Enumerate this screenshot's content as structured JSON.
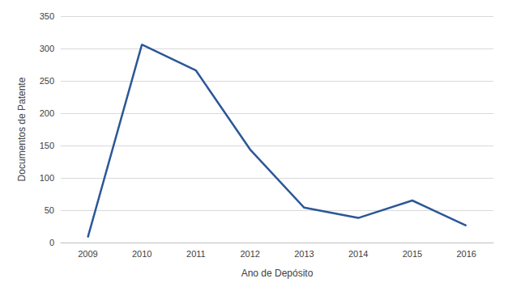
{
  "chart_data": {
    "type": "line",
    "x_label": "Ano de Depósito",
    "y_label": "Documentos de Patente",
    "categories": [
      "2009",
      "2010",
      "2011",
      "2012",
      "2013",
      "2014",
      "2015",
      "2016"
    ],
    "values": [
      8,
      306,
      266,
      144,
      54,
      38,
      65,
      26
    ],
    "color": "#2b5797",
    "ylim": [
      0,
      350
    ],
    "yticks": [
      0,
      50,
      100,
      150,
      200,
      250,
      300,
      350
    ],
    "grid": true
  }
}
